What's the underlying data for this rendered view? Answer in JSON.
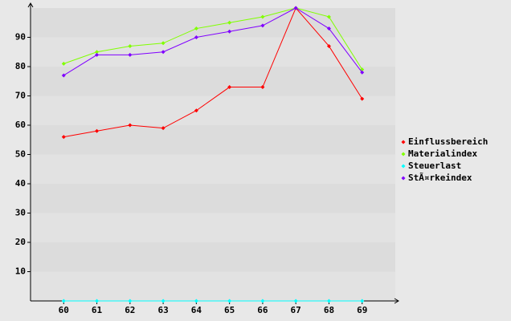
{
  "chart_data": {
    "type": "line",
    "x": [
      60,
      61,
      62,
      63,
      64,
      65,
      66,
      67,
      68,
      69
    ],
    "xlim": [
      59,
      70
    ],
    "xticks": [
      60,
      61,
      62,
      63,
      64,
      65,
      66,
      67,
      68,
      69
    ],
    "ylim": [
      0,
      100
    ],
    "yticks": [
      10,
      20,
      30,
      40,
      50,
      60,
      70,
      80,
      90
    ],
    "grid": true,
    "legend": "right",
    "series": [
      {
        "name": "Einflussbereich",
        "color": "#ff0000",
        "values": [
          56,
          58,
          60,
          59,
          65,
          73,
          73,
          100,
          87,
          69
        ]
      },
      {
        "name": "Materialindex",
        "color": "#80ff00",
        "values": [
          81,
          85,
          87,
          88,
          93,
          95,
          97,
          100,
          97,
          79
        ]
      },
      {
        "name": "Steuerlast",
        "color": "#00ffff",
        "values": [
          0,
          0,
          0,
          0,
          0,
          0,
          0,
          0,
          0,
          0
        ]
      },
      {
        "name": "StÃ¤rkeindex",
        "color": "#8000ff",
        "values": [
          77,
          84,
          84,
          85,
          90,
          92,
          94,
          100,
          93,
          78
        ]
      }
    ]
  }
}
